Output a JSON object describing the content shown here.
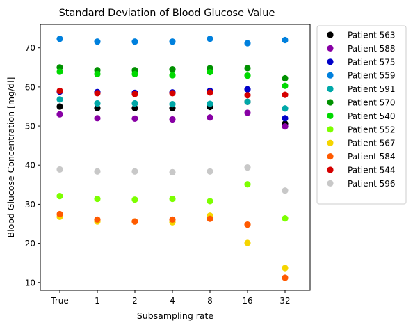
{
  "chart_data": {
    "type": "scatter",
    "title": "Standard Deviation of Blood Glucose Value",
    "xlabel": "Subsampling rate",
    "ylabel": "Blood Glucose Concentration [mg/dl]",
    "categories": [
      "True",
      "1",
      "2",
      "4",
      "8",
      "16",
      "32"
    ],
    "ylim": [
      8,
      76
    ],
    "yticks": [
      10,
      20,
      30,
      40,
      50,
      60,
      70
    ],
    "grid": false,
    "legend_position": "outside-right",
    "series": [
      {
        "name": "Patient 563",
        "color": "#000000",
        "values": [
          55.0,
          54.6,
          54.6,
          54.6,
          54.9,
          56.2,
          50.6
        ]
      },
      {
        "name": "Patient 588",
        "color": "#8800a5",
        "values": [
          53.0,
          52.0,
          51.9,
          51.7,
          52.2,
          53.4,
          49.9
        ]
      },
      {
        "name": "Patient 575",
        "color": "#0000c8",
        "values": [
          58.8,
          58.7,
          58.5,
          58.6,
          59.0,
          59.4,
          52.0
        ]
      },
      {
        "name": "Patient 559",
        "color": "#0080dd",
        "values": [
          72.3,
          71.6,
          71.6,
          71.6,
          72.3,
          71.2,
          72.0
        ]
      },
      {
        "name": "Patient 591",
        "color": "#00a8a8",
        "values": [
          56.8,
          55.8,
          55.8,
          55.6,
          55.7,
          56.2,
          54.5
        ]
      },
      {
        "name": "Patient 570",
        "color": "#009100",
        "values": [
          65.0,
          64.3,
          64.3,
          64.5,
          64.8,
          64.8,
          62.2
        ]
      },
      {
        "name": "Patient 540",
        "color": "#00d900",
        "values": [
          63.9,
          63.3,
          63.3,
          63.0,
          63.8,
          62.9,
          60.3
        ]
      },
      {
        "name": "Patient 552",
        "color": "#7dff00",
        "values": [
          32.1,
          31.4,
          31.2,
          31.4,
          30.8,
          35.1,
          26.4
        ]
      },
      {
        "name": "Patient 567",
        "color": "#f5d500",
        "values": [
          26.8,
          25.6,
          25.6,
          25.4,
          27.1,
          20.1,
          13.7
        ]
      },
      {
        "name": "Patient 584",
        "color": "#ff5a00",
        "values": [
          27.5,
          26.1,
          25.6,
          26.1,
          26.3,
          24.8,
          11.2
        ]
      },
      {
        "name": "Patient 544",
        "color": "#d50000",
        "values": [
          59.0,
          58.4,
          58.2,
          58.4,
          58.6,
          57.9,
          58.0
        ]
      },
      {
        "name": "Patient 596",
        "color": "#c8c8c8",
        "values": [
          38.9,
          38.4,
          38.4,
          38.2,
          38.4,
          39.4,
          33.5
        ]
      }
    ]
  }
}
